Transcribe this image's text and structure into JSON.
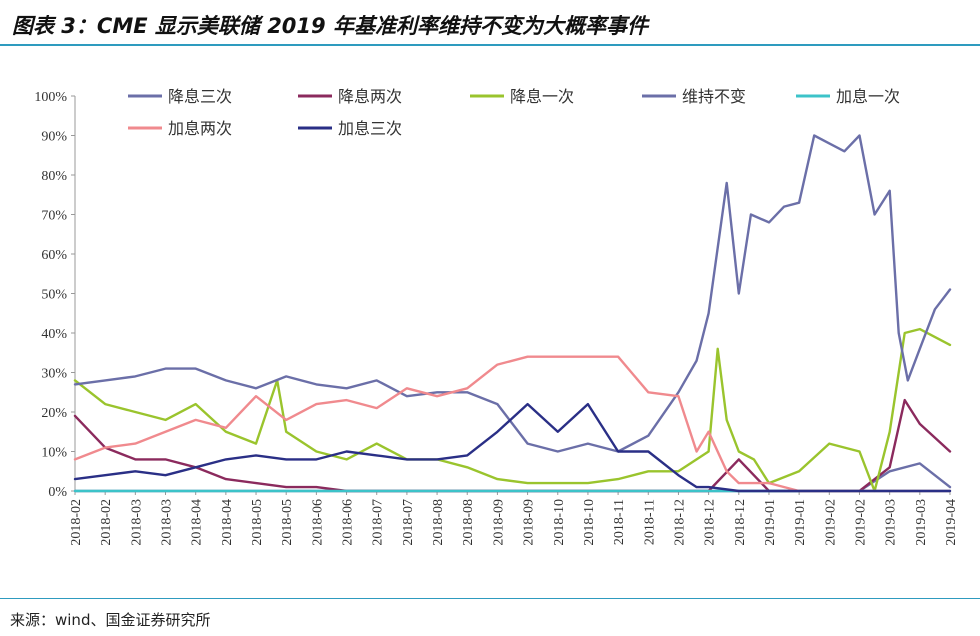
{
  "figure": {
    "title": "图表 3：CME 显示美联储 2019 年基准利率维持不变为大概率事件",
    "source": "来源：wind、国金证券研究所"
  },
  "chart_data": {
    "type": "line",
    "y_ticks": [
      "0%",
      "10%",
      "20%",
      "30%",
      "40%",
      "50%",
      "60%",
      "70%",
      "80%",
      "90%",
      "100%"
    ],
    "ylim": [
      0,
      100
    ],
    "x_ticks": [
      "2018-02",
      "2018-02",
      "2018-03",
      "2018-03",
      "2018-04",
      "2018-04",
      "2018-05",
      "2018-05",
      "2018-06",
      "2018-06",
      "2018-07",
      "2018-07",
      "2018-08",
      "2018-08",
      "2018-09",
      "2018-09",
      "2018-10",
      "2018-10",
      "2018-11",
      "2018-11",
      "2018-12",
      "2018-12",
      "2018-12",
      "2019-01",
      "2019-01",
      "2019-02",
      "2019-02",
      "2019-03",
      "2019-03",
      "2019-04"
    ],
    "legend_position": "top",
    "grid": false,
    "series": [
      {
        "name": "降息三次",
        "color": "#6b6fa8",
        "x": [
          0,
          1,
          2,
          3,
          4,
          5,
          6,
          7,
          8,
          9,
          10,
          11,
          12,
          13,
          14,
          15,
          16,
          17,
          18,
          19,
          20,
          21,
          22,
          23,
          24,
          25,
          26,
          27,
          28,
          29
        ],
        "y": [
          0,
          0,
          0,
          0,
          0,
          0,
          0,
          0,
          0,
          0,
          0,
          0,
          0,
          0,
          0,
          0,
          0,
          0,
          0,
          0,
          0,
          0,
          0,
          0,
          0,
          0,
          0,
          5,
          7,
          1
        ]
      },
      {
        "name": "降息两次",
        "color": "#8b2a5d",
        "x": [
          0,
          1,
          2,
          3,
          4,
          5,
          6,
          7,
          8,
          9,
          10,
          11,
          12,
          13,
          14,
          15,
          16,
          17,
          18,
          19,
          20,
          21,
          22,
          23,
          24,
          25,
          26,
          27,
          27.5,
          28,
          29
        ],
        "y": [
          19,
          11,
          8,
          8,
          6,
          3,
          2,
          1,
          1,
          0,
          0,
          0,
          0,
          0,
          0,
          0,
          0,
          0,
          0,
          0,
          0,
          0,
          8,
          0,
          0,
          0,
          0,
          6,
          23,
          17,
          10
        ]
      },
      {
        "name": "降息一次",
        "color": "#9ac42d",
        "x": [
          0,
          1,
          2,
          3,
          4,
          5,
          6,
          6.7,
          7,
          8,
          9,
          10,
          11,
          12,
          13,
          14,
          15,
          16,
          17,
          18,
          19,
          20,
          21,
          21.3,
          21.6,
          22,
          22.5,
          23,
          24,
          25,
          26,
          26.5,
          27,
          27.5,
          28,
          29
        ],
        "y": [
          28,
          22,
          20,
          18,
          22,
          15,
          12,
          28,
          15,
          10,
          8,
          12,
          8,
          8,
          6,
          3,
          2,
          2,
          2,
          3,
          5,
          5,
          10,
          36,
          18,
          10,
          8,
          2,
          5,
          12,
          10,
          0,
          15,
          40,
          41,
          37
        ]
      },
      {
        "name": "维持不变",
        "color": "#6b6fa8",
        "x": [
          0,
          1,
          2,
          3,
          4,
          5,
          6,
          7,
          8,
          9,
          10,
          11,
          12,
          13,
          14,
          15,
          16,
          17,
          18,
          19,
          20,
          20.6,
          21,
          21.6,
          22,
          22.4,
          23,
          23.5,
          24,
          24.5,
          25,
          25.5,
          26,
          26.5,
          27,
          27.3,
          27.6,
          28,
          28.5,
          29
        ],
        "y": [
          27,
          28,
          29,
          31,
          31,
          28,
          26,
          29,
          27,
          26,
          28,
          24,
          25,
          25,
          22,
          12,
          10,
          12,
          10,
          14,
          25,
          33,
          45,
          78,
          50,
          70,
          68,
          72,
          73,
          90,
          88,
          86,
          90,
          70,
          76,
          40,
          28,
          36,
          46,
          51
        ]
      },
      {
        "name": "加息一次",
        "color": "#3cc3c9",
        "x": [
          0,
          29
        ],
        "y": [
          0,
          0
        ]
      },
      {
        "name": "加息两次",
        "color": "#f08a8e",
        "x": [
          0,
          1,
          2,
          3,
          4,
          5,
          6,
          7,
          8,
          9,
          10,
          11,
          12,
          13,
          14,
          15,
          16,
          17,
          18,
          19,
          20,
          20.6,
          21,
          21.6,
          22,
          23,
          24,
          25,
          26,
          27,
          28,
          29
        ],
        "y": [
          8,
          11,
          12,
          15,
          18,
          16,
          24,
          18,
          22,
          23,
          21,
          26,
          24,
          26,
          32,
          34,
          34,
          34,
          34,
          25,
          24,
          10,
          15,
          5,
          2,
          2,
          0,
          0,
          0,
          0,
          0,
          0
        ]
      },
      {
        "name": "加息三次",
        "color": "#2a2f86",
        "x": [
          0,
          1,
          2,
          3,
          4,
          5,
          6,
          7,
          8,
          9,
          10,
          11,
          12,
          13,
          14,
          15,
          16,
          17,
          18,
          19,
          20,
          20.6,
          21,
          22,
          23,
          24,
          25,
          26,
          27,
          28,
          29
        ],
        "y": [
          3,
          4,
          5,
          4,
          6,
          8,
          9,
          8,
          8,
          10,
          9,
          8,
          8,
          9,
          15,
          22,
          15,
          22,
          10,
          10,
          4,
          1,
          1,
          0,
          0,
          0,
          0,
          0,
          0,
          0,
          0
        ]
      }
    ]
  }
}
